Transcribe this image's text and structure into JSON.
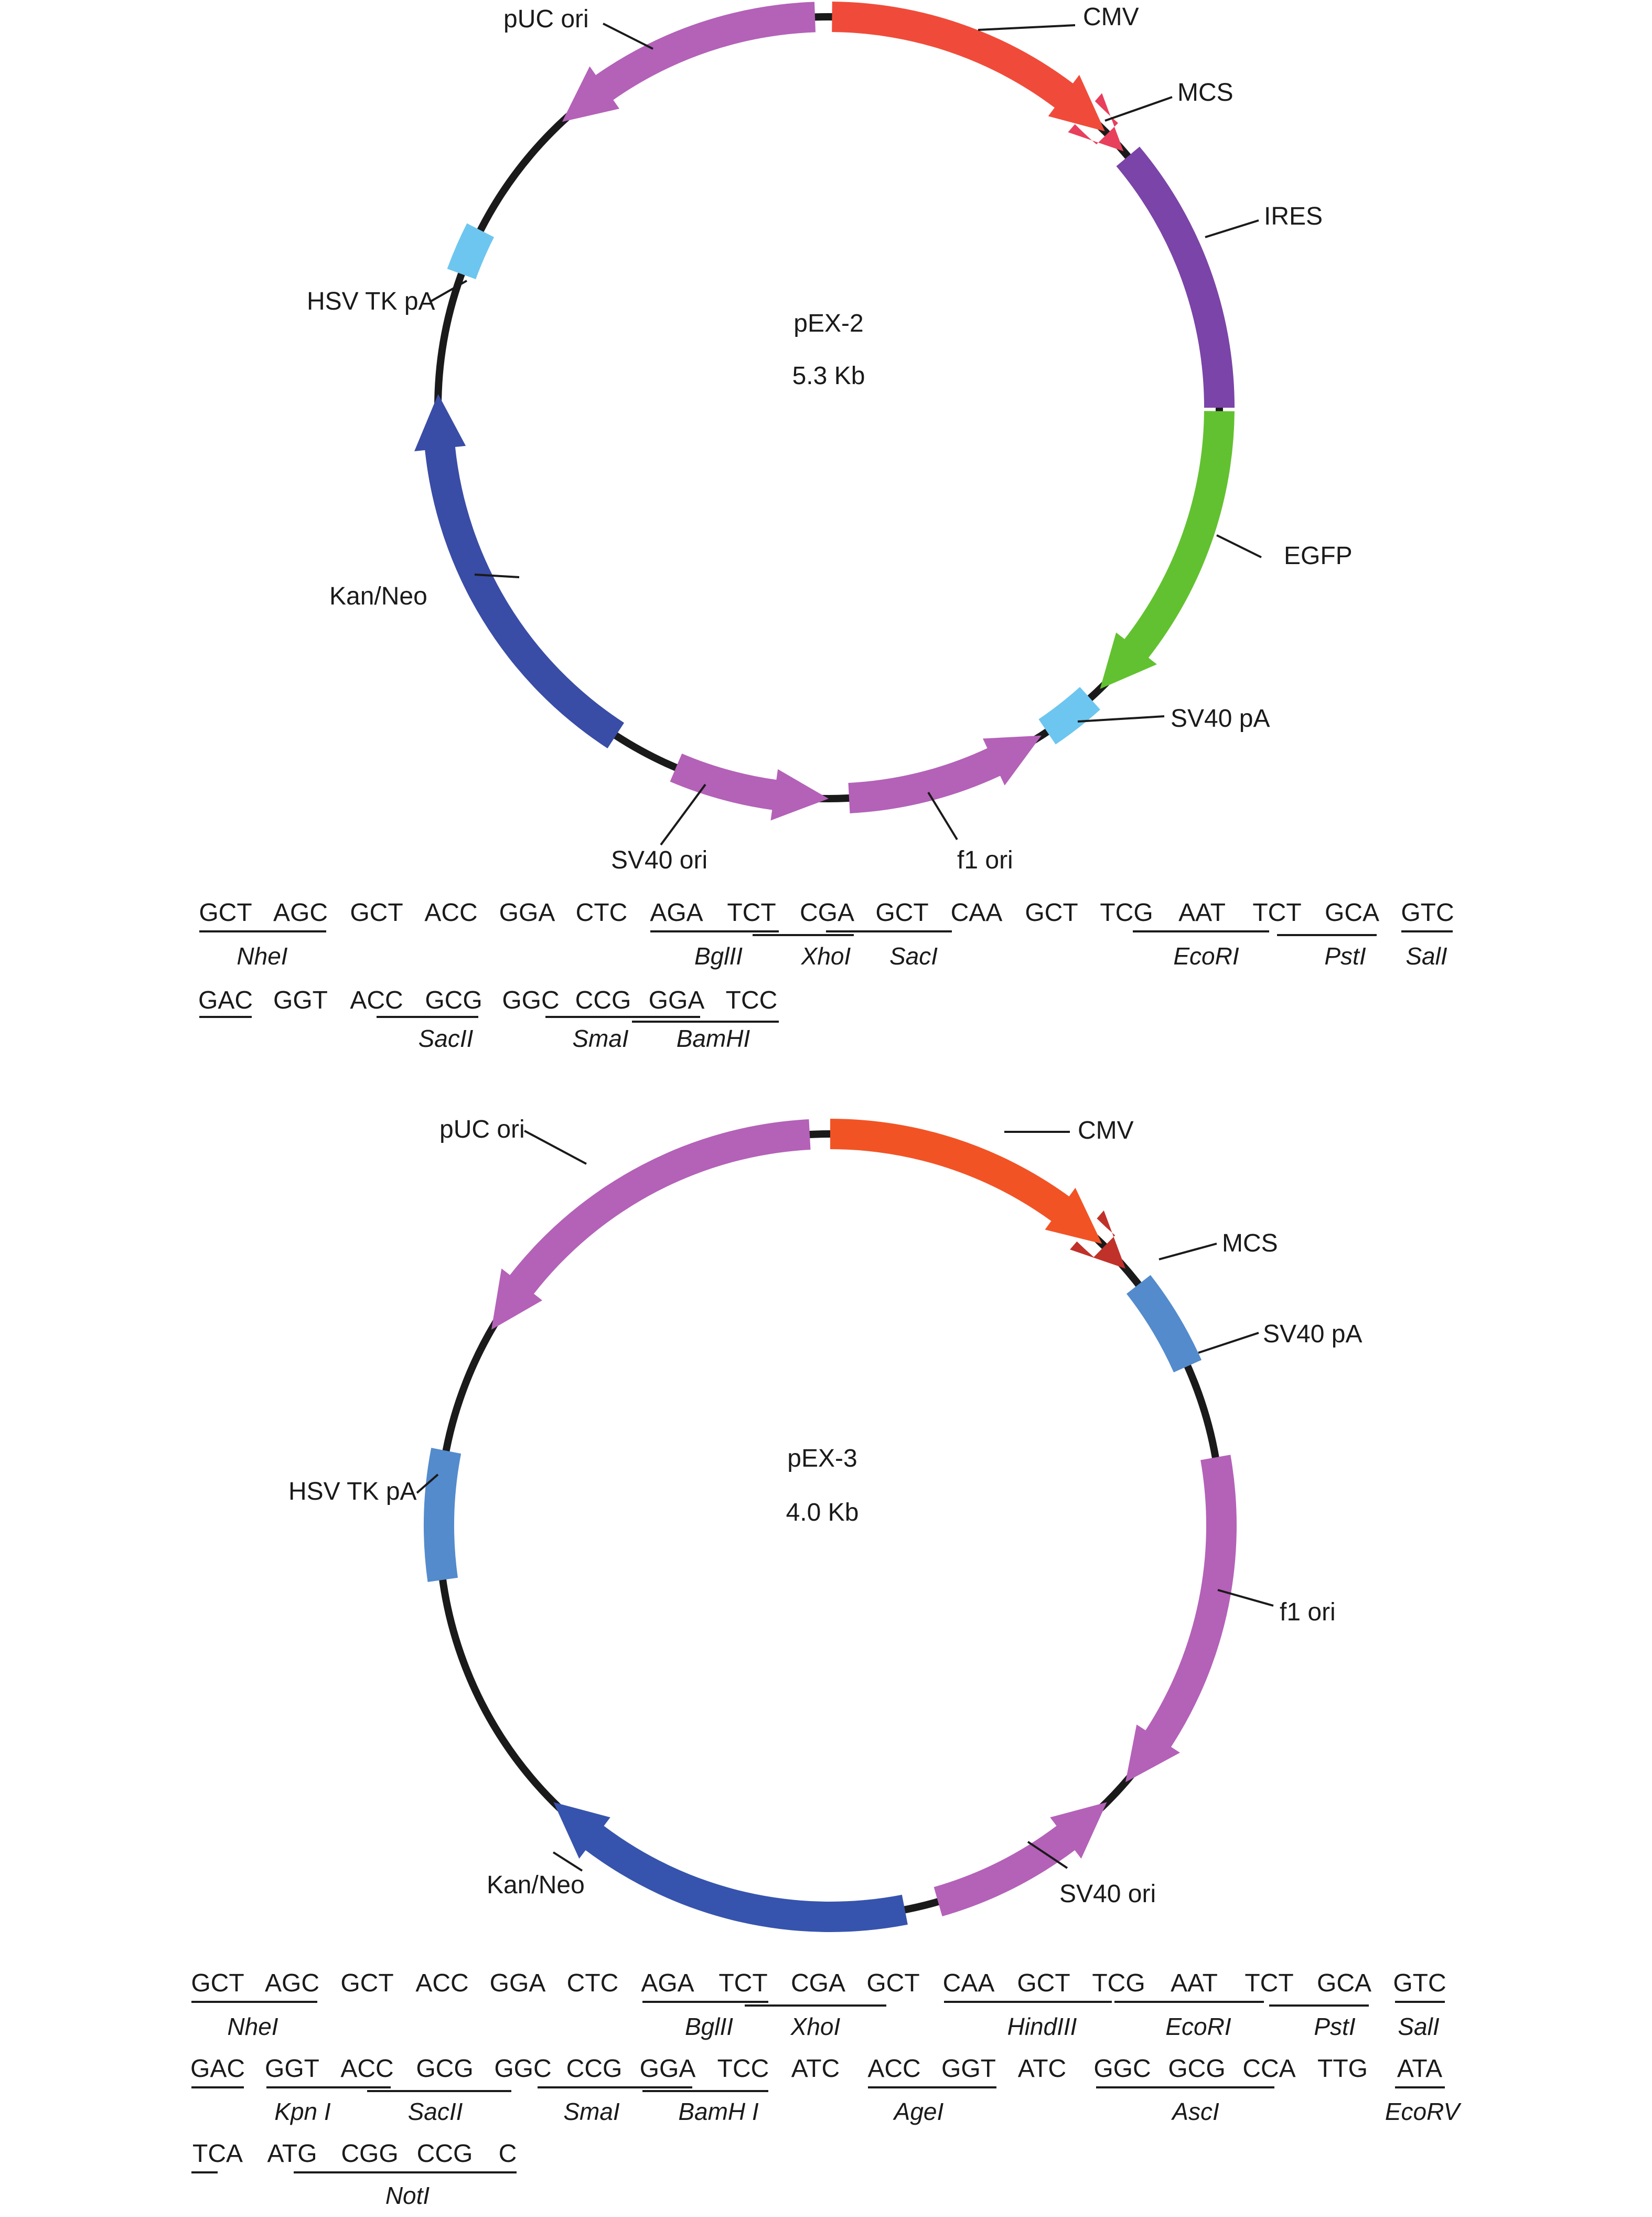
{
  "plasmids": [
    {
      "name": "pEX-2",
      "size": "5.3 Kb",
      "features": [
        {
          "label": "CMV",
          "color": "#f04b3a"
        },
        {
          "label": "MCS",
          "color": "#e83f5c"
        },
        {
          "label": "IRES",
          "color": "#7b44a8"
        },
        {
          "label": "EGFP",
          "color": "#62c130"
        },
        {
          "label": "SV40 pA",
          "color": "#6dc6ef"
        },
        {
          "label": "f1 ori",
          "color": "#b461b8"
        },
        {
          "label": "SV40 ori",
          "color": "#b461b8"
        },
        {
          "label": "Kan/Neo",
          "color": "#394ca6"
        },
        {
          "label": "HSV TK pA",
          "color": "#6dc6ef"
        },
        {
          "label": "pUC ori",
          "color": "#b461b8"
        }
      ],
      "mcs": {
        "rows": [
          [
            "GCT",
            "AGC",
            "GCT",
            "ACC",
            "GGA",
            "CTC",
            "AGA",
            "TCT",
            "CGA",
            "GCT",
            "CAA",
            "GCT",
            "TCG",
            "AAT",
            "TCT",
            "GCA",
            "GTC"
          ],
          [
            "GAC",
            "GGT",
            "ACC",
            "GCG",
            "GGC",
            "CCG",
            "GGA",
            "TCC"
          ]
        ],
        "enzymes": [
          "NheI",
          "BglII",
          "XhoI",
          "SacI",
          "EcoRI",
          "PstI",
          "SalI",
          "SacII",
          "SmaI",
          "BamHI"
        ]
      }
    },
    {
      "name": "pEX-3",
      "size": "4.0 Kb",
      "features": [
        {
          "label": "CMV",
          "color": "#f25325"
        },
        {
          "label": "MCS",
          "color": "#c0312a"
        },
        {
          "label": "SV40 pA",
          "color": "#538bcd"
        },
        {
          "label": "f1 ori",
          "color": "#b461b8"
        },
        {
          "label": "SV40 ori",
          "color": "#b461b8"
        },
        {
          "label": "Kan/Neo",
          "color": "#3654ad"
        },
        {
          "label": "HSV TK pA",
          "color": "#538bcd"
        },
        {
          "label": "pUC ori",
          "color": "#b461b8"
        }
      ],
      "mcs": {
        "rows": [
          [
            "GCT",
            "AGC",
            "GCT",
            "ACC",
            "GGA",
            "CTC",
            "AGA",
            "TCT",
            "CGA",
            "GCT",
            "CAA",
            "GCT",
            "TCG",
            "AAT",
            "TCT",
            "GCA",
            "GTC"
          ],
          [
            "GAC",
            "GGT",
            "ACC",
            "GCG",
            "GGC",
            "CCG",
            "GGA",
            "TCC",
            "ATC",
            "ACC",
            "GGT",
            "ATC",
            "GGC",
            "GCG",
            "CCA",
            "TTG",
            "ATA"
          ],
          [
            "TCA",
            "ATG",
            "CGG",
            "CCG",
            "C"
          ]
        ],
        "enzymes": [
          "NheI",
          "BglII",
          "XhoI",
          "HindIII",
          "EcoRI",
          "PstI",
          "SalI",
          "Kpn I",
          "SacII",
          "SmaI",
          "BamH I",
          "AgeI",
          "AscI",
          "EcoRV",
          "NotI"
        ]
      }
    }
  ]
}
